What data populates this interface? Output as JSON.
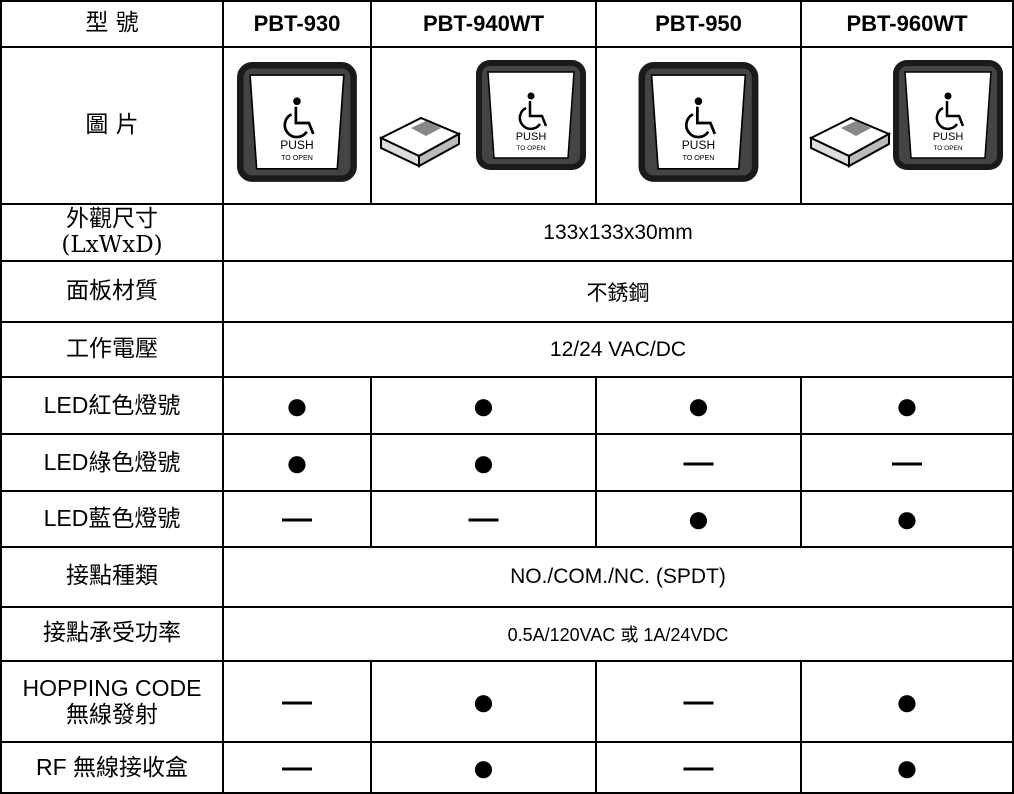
{
  "table": {
    "header": [
      "型  號",
      "PBT-930",
      "PBT-940WT",
      "PBT-950",
      "PBT-960WT"
    ],
    "image_row": {
      "label": "圖  片",
      "button_text": [
        "PUSH",
        "TO OPEN"
      ]
    },
    "rows": [
      {
        "label": "外觀尺寸\n(LxWxD)",
        "cells": [
          "133x133x30mm"
        ]
      },
      {
        "label": "面板材質",
        "cells": [
          "不銹鋼"
        ]
      },
      {
        "label": "工作電壓",
        "cells": [
          "12/24 VAC/DC"
        ]
      },
      {
        "label": "LED紅色燈號",
        "cells": [
          "●",
          "●",
          "●",
          "●"
        ]
      },
      {
        "label": "LED綠色燈號",
        "cells": [
          "●",
          "●",
          "—",
          "—"
        ]
      },
      {
        "label": "LED藍色燈號",
        "cells": [
          "—",
          "—",
          "●",
          "●"
        ]
      },
      {
        "label": "接點種類",
        "cells": [
          "NO./COM./NC. (SPDT)"
        ]
      },
      {
        "label": "接點承受功率",
        "cells": [
          "0.5A/120VAC 或 1A/24VDC"
        ]
      },
      {
        "label": "HOPPING CODE\n無線發射",
        "cells": [
          "—",
          "●",
          "—",
          "●"
        ]
      },
      {
        "label": "RF 無線接收盒",
        "cells": [
          "—",
          "●",
          "—",
          "●"
        ]
      }
    ]
  }
}
